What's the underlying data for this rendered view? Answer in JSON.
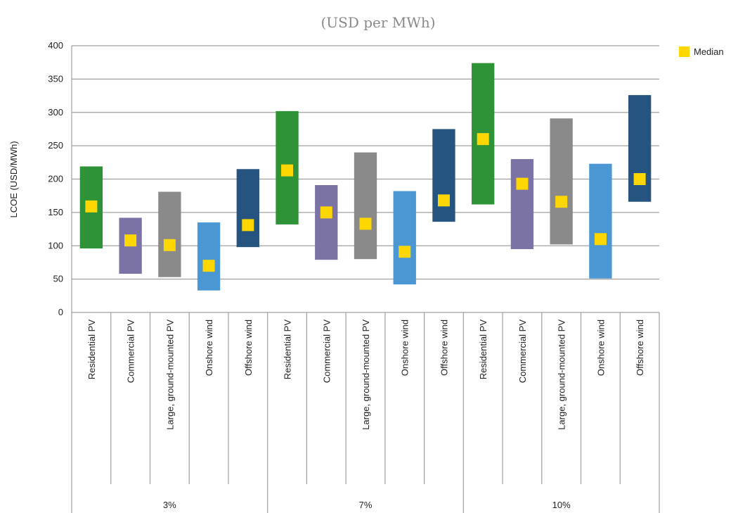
{
  "chart_data": {
    "type": "bar",
    "subtype": "floating-range-with-median",
    "title": "(USD per MWh)",
    "ylabel": "LCOE (USD/MWh)",
    "ylim": [
      0,
      400
    ],
    "yticks": [
      0,
      50,
      100,
      150,
      200,
      250,
      300,
      350,
      400
    ],
    "grid": true,
    "legend": {
      "placement": "top-right",
      "entries": [
        {
          "label": "Median",
          "color": "#ffd700"
        }
      ]
    },
    "groups": [
      {
        "label": "3%",
        "items": [
          {
            "category": "Residential PV",
            "low": 96,
            "high": 219,
            "median": 159,
            "color": "#2e9236"
          },
          {
            "category": "Commercial PV",
            "low": 58,
            "high": 142,
            "median": 108,
            "color": "#7b72a6"
          },
          {
            "category": "Large, ground-mounted PV",
            "low": 53,
            "high": 181,
            "median": 101,
            "color": "#8a8a8a"
          },
          {
            "category": "Onshore wind",
            "low": 33,
            "high": 135,
            "median": 70,
            "color": "#4a97d4"
          },
          {
            "category": "Offshore wind",
            "low": 98,
            "high": 215,
            "median": 131,
            "color": "#24547f"
          }
        ]
      },
      {
        "label": "7%",
        "items": [
          {
            "category": "Residential PV",
            "low": 132,
            "high": 302,
            "median": 213,
            "color": "#2e9236"
          },
          {
            "category": "Commercial PV",
            "low": 79,
            "high": 191,
            "median": 150,
            "color": "#7b72a6"
          },
          {
            "category": "Large, ground-mounted PV",
            "low": 80,
            "high": 240,
            "median": 133,
            "color": "#8a8a8a"
          },
          {
            "category": "Onshore wind",
            "low": 42,
            "high": 182,
            "median": 91,
            "color": "#4a97d4"
          },
          {
            "category": "Offshore wind",
            "low": 136,
            "high": 275,
            "median": 168,
            "color": "#24547f"
          }
        ]
      },
      {
        "label": "10%",
        "items": [
          {
            "category": "Residential PV",
            "low": 162,
            "high": 374,
            "median": 260,
            "color": "#2e9236"
          },
          {
            "category": "Commercial PV",
            "low": 95,
            "high": 230,
            "median": 193,
            "color": "#7b72a6"
          },
          {
            "category": "Large, ground-mounted PV",
            "low": 102,
            "high": 291,
            "median": 166,
            "color": "#8a8a8a"
          },
          {
            "category": "Onshore wind",
            "low": 51,
            "high": 223,
            "median": 110,
            "color": "#4a97d4"
          },
          {
            "category": "Offshore wind",
            "low": 166,
            "high": 326,
            "median": 200,
            "color": "#24547f"
          }
        ]
      }
    ],
    "median_color": "#ffd700",
    "grid_color": "#a0a0a0",
    "axis_color": "#a0a0a0"
  }
}
